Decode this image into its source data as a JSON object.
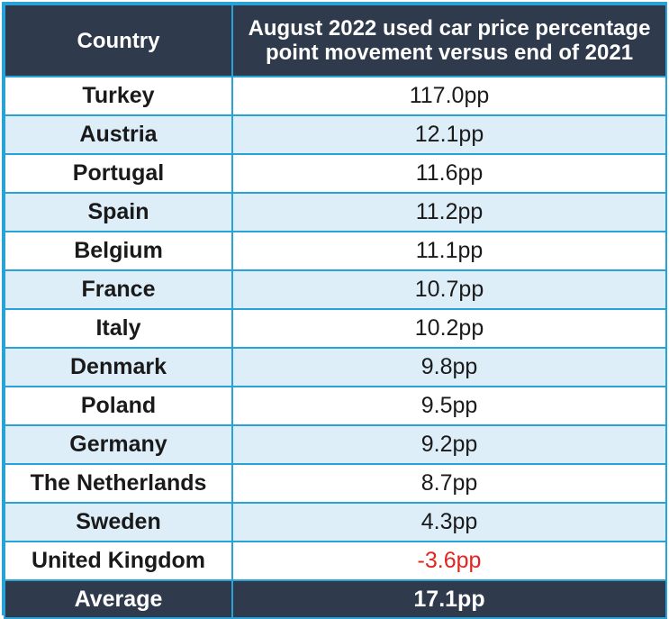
{
  "chart_data": {
    "type": "table",
    "columns": [
      "Country",
      "August 2022 used car price percentage point movement versus end of 2021"
    ],
    "rows": [
      {
        "country": "Turkey",
        "value": "117.0pp"
      },
      {
        "country": "Austria",
        "value": "12.1pp"
      },
      {
        "country": "Portugal",
        "value": "11.6pp"
      },
      {
        "country": "Spain",
        "value": "11.2pp"
      },
      {
        "country": "Belgium",
        "value": "11.1pp"
      },
      {
        "country": "France",
        "value": "10.7pp"
      },
      {
        "country": "Italy",
        "value": "10.2pp"
      },
      {
        "country": "Denmark",
        "value": "9.8pp"
      },
      {
        "country": "Poland",
        "value": "9.5pp"
      },
      {
        "country": "Germany",
        "value": "9.2pp"
      },
      {
        "country": "The Netherlands",
        "value": "8.7pp"
      },
      {
        "country": "Sweden",
        "value": "4.3pp"
      },
      {
        "country": "United Kingdom",
        "value": "-3.6pp"
      }
    ],
    "average": {
      "label": "Average",
      "value": "17.1pp"
    },
    "header_color": "#2f3b4c",
    "border_color": "#27a3d9",
    "stripe_color": "#ddeef9",
    "negative_color": "#e0261f"
  }
}
